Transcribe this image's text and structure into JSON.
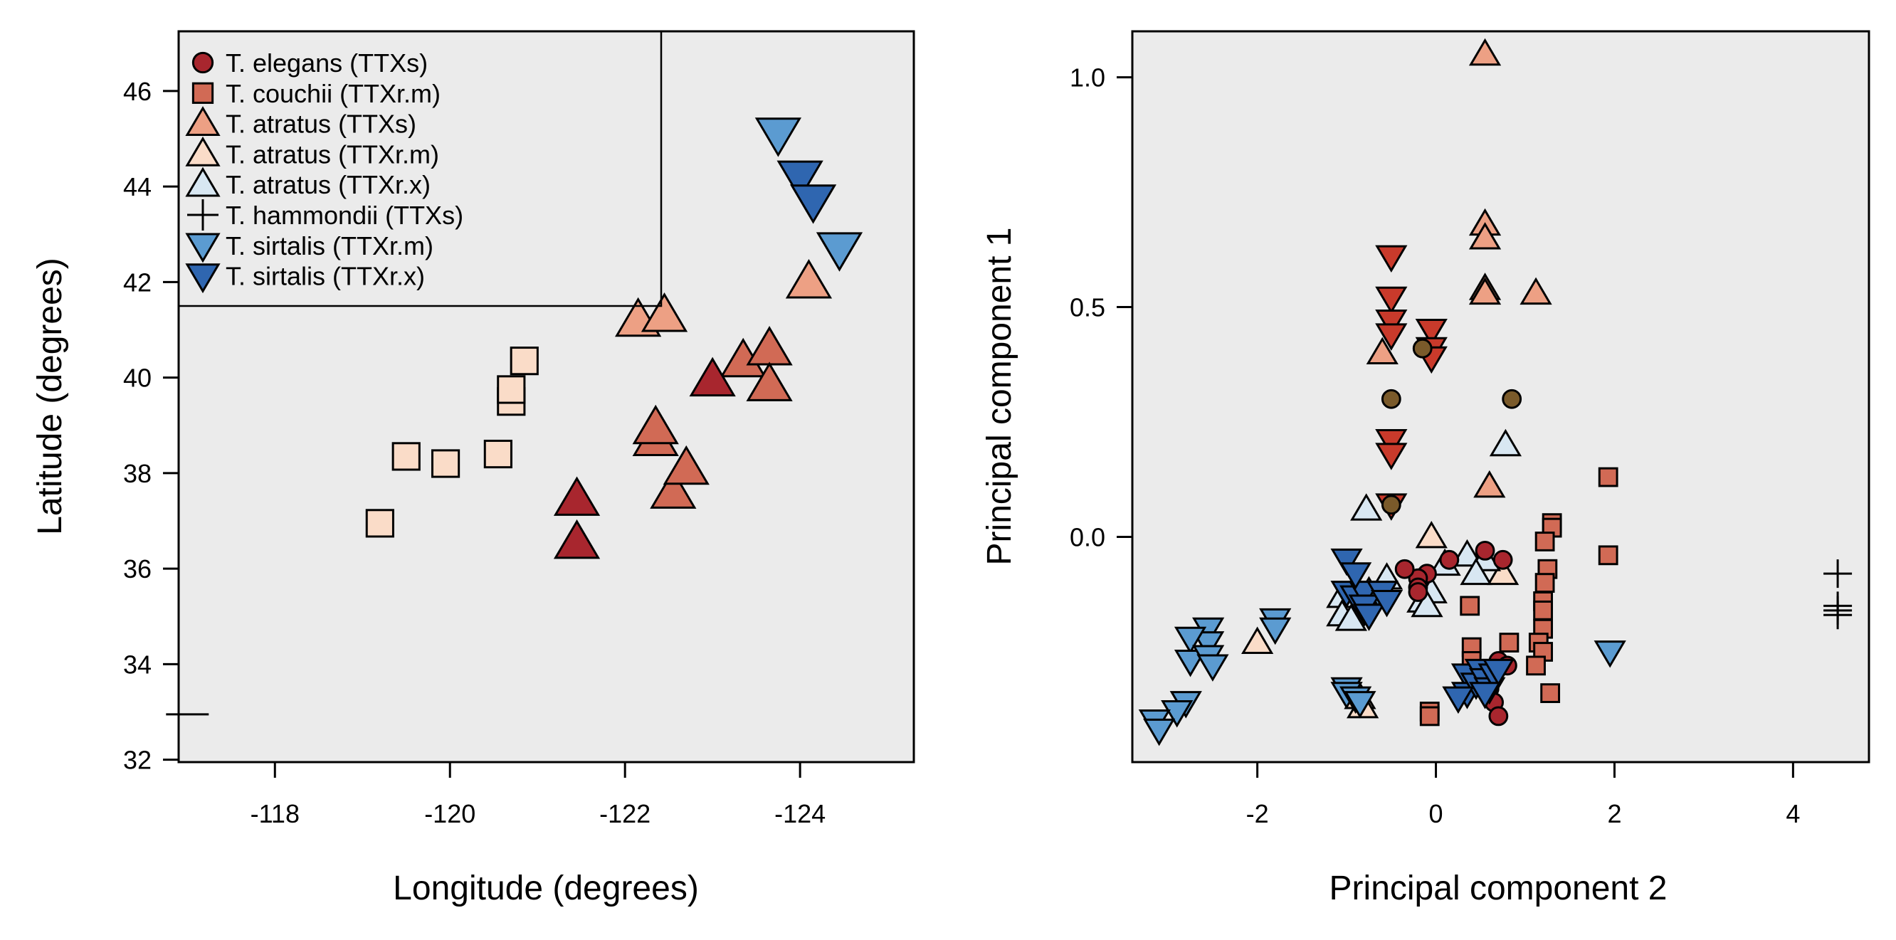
{
  "chart_data": [
    {
      "type": "scatter",
      "xlabel": "Longitude (degrees)",
      "ylabel": "Latitude (degrees)",
      "xlim": [
        -116.9,
        -125.3
      ],
      "ylim": [
        31.95,
        47.25
      ],
      "xticks": [
        -118,
        -120,
        -122,
        -124
      ],
      "xtick_labels": [
        "-118",
        "-120",
        "-122",
        "-124"
      ],
      "yticks": [
        32,
        34,
        36,
        38,
        40,
        42,
        44,
        46
      ],
      "ytick_labels": [
        "32",
        "34",
        "36",
        "38",
        "40",
        "42",
        "44",
        "46"
      ],
      "legend_position": "top-left",
      "legend": [
        {
          "name": "T. elegans (TTXs)",
          "marker": "circle",
          "color": "#A8262E"
        },
        {
          "name": "T. couchii (TTXr.m)",
          "marker": "square",
          "color": "#D16A55"
        },
        {
          "name": "T. atratus (TTXs)",
          "marker": "triangle-up",
          "color": "#EDA084"
        },
        {
          "name": "T. atratus (TTXr.m)",
          "marker": "triangle-up",
          "color": "#FADCC8"
        },
        {
          "name": "T. atratus (TTXr.x)",
          "marker": "triangle-up",
          "color": "#D8E7F2"
        },
        {
          "name": "T. hammondii (TTXs)",
          "marker": "plus",
          "color": "#000000"
        },
        {
          "name": "T. sirtalis (TTXr.m)",
          "marker": "triangle-down",
          "color": "#5B9BD1"
        },
        {
          "name": "T. sirtalis (TTXr.x)",
          "marker": "triangle-down",
          "color": "#2F66B0"
        }
      ],
      "series": [
        {
          "marker": "square",
          "color": "#FADCC8",
          "points": [
            [
              -119.2,
              36.95
            ],
            [
              -119.5,
              38.35
            ],
            [
              -119.95,
              38.2
            ],
            [
              -120.55,
              38.4
            ],
            [
              -120.7,
              39.5
            ],
            [
              -120.7,
              39.75
            ],
            [
              -120.85,
              40.35
            ]
          ]
        },
        {
          "marker": "triangle-up",
          "color": "#EDA084",
          "points": [
            [
              -122.15,
              41.2
            ],
            [
              -122.45,
              41.3
            ],
            [
              -124.1,
              42.0
            ]
          ]
        },
        {
          "marker": "triangle-up",
          "color": "#D16A55",
          "points": [
            [
              -122.35,
              38.7
            ],
            [
              -122.35,
              38.95
            ],
            [
              -122.55,
              37.6
            ],
            [
              -122.7,
              38.1
            ],
            [
              -123.35,
              40.35
            ],
            [
              -123.65,
              40.6
            ],
            [
              -123.65,
              39.85
            ]
          ]
        },
        {
          "marker": "triangle-up",
          "color": "#A8262E",
          "points": [
            [
              -121.45,
              37.45
            ],
            [
              -121.45,
              36.55
            ],
            [
              -123.0,
              39.95
            ]
          ]
        },
        {
          "marker": "triangle-down",
          "color": "#5B9BD1",
          "points": [
            [
              -123.75,
              45.1
            ],
            [
              -124.45,
              42.7
            ]
          ]
        },
        {
          "marker": "triangle-down",
          "color": "#2F66B0",
          "points": [
            [
              -124.0,
              44.2
            ],
            [
              -124.15,
              43.7
            ]
          ]
        },
        {
          "marker": "dash",
          "color": "#000000",
          "points": [
            [
              -117.0,
              32.95
            ]
          ]
        }
      ]
    },
    {
      "type": "scatter",
      "xlabel": "Principal component 2",
      "ylabel": "Principal component 1",
      "xlim": [
        -3.4,
        4.85
      ],
      "ylim": [
        -0.49,
        1.1
      ],
      "xticks": [
        -2,
        0,
        2,
        4
      ],
      "xtick_labels": [
        "-2",
        "0",
        "2",
        "4"
      ],
      "yticks": [
        0.0,
        0.5,
        1.0
      ],
      "ytick_labels": [
        "0.0",
        "0.5",
        "1.0"
      ],
      "series": [
        {
          "marker": "triangle-up",
          "color": "#EDA084",
          "points": [
            [
              0.55,
              1.05
            ],
            [
              0.55,
              0.68
            ],
            [
              0.55,
              0.65
            ],
            [
              0.55,
              0.54
            ],
            [
              0.55,
              0.53
            ],
            [
              1.12,
              0.53
            ],
            [
              -0.6,
              0.4
            ],
            [
              0.6,
              0.11
            ]
          ]
        },
        {
          "marker": "triangle-up",
          "color": "#FADCC8",
          "points": [
            [
              -0.05,
              0.0
            ],
            [
              0.75,
              -0.08
            ],
            [
              -2.0,
              -0.23
            ],
            [
              -0.85,
              -0.35
            ],
            [
              -0.82,
              -0.37
            ]
          ]
        },
        {
          "marker": "triangle-up",
          "color": "#D8E7F2",
          "points": [
            [
              0.78,
              0.2
            ],
            [
              -0.78,
              0.06
            ],
            [
              -1.05,
              -0.13
            ],
            [
              -1.05,
              -0.17
            ],
            [
              -0.95,
              -0.18
            ],
            [
              -0.75,
              -0.12
            ],
            [
              -0.55,
              -0.09
            ],
            [
              -0.05,
              -0.12
            ],
            [
              -0.15,
              -0.14
            ],
            [
              -0.1,
              -0.15
            ],
            [
              0.1,
              -0.06
            ],
            [
              0.35,
              -0.04
            ],
            [
              0.55,
              -0.05
            ],
            [
              0.45,
              -0.08
            ]
          ]
        },
        {
          "marker": "triangle-down",
          "color": "#C93A2B",
          "points": [
            [
              -0.5,
              0.61
            ],
            [
              -0.5,
              0.52
            ],
            [
              -0.5,
              0.47
            ],
            [
              -0.5,
              0.44
            ],
            [
              -0.05,
              0.45
            ],
            [
              -0.05,
              0.41
            ],
            [
              -0.05,
              0.39
            ],
            [
              -0.5,
              0.21
            ],
            [
              -0.5,
              0.18
            ],
            [
              -0.5,
              0.07
            ]
          ]
        },
        {
          "marker": "circle",
          "color": "#7A5A2A",
          "points": [
            [
              -0.15,
              0.41
            ],
            [
              -0.5,
              0.3
            ],
            [
              0.85,
              0.3
            ],
            [
              -0.5,
              0.07
            ]
          ]
        },
        {
          "marker": "circle",
          "color": "#A8262E",
          "points": [
            [
              -0.1,
              -0.08
            ],
            [
              -0.2,
              -0.09
            ],
            [
              -0.35,
              -0.07
            ],
            [
              -0.2,
              -0.11
            ],
            [
              -0.2,
              -0.12
            ],
            [
              0.15,
              -0.05
            ],
            [
              0.55,
              -0.03
            ],
            [
              0.75,
              -0.05
            ],
            [
              0.7,
              -0.27
            ],
            [
              0.8,
              -0.28
            ],
            [
              0.55,
              -0.3
            ],
            [
              0.6,
              -0.33
            ],
            [
              0.65,
              -0.36
            ],
            [
              0.7,
              -0.39
            ]
          ]
        },
        {
          "marker": "square",
          "color": "#D16A55",
          "points": [
            [
              1.93,
              0.13
            ],
            [
              1.93,
              -0.04
            ],
            [
              1.3,
              0.03
            ],
            [
              1.3,
              0.02
            ],
            [
              1.22,
              -0.01
            ],
            [
              1.25,
              -0.07
            ],
            [
              1.22,
              -0.1
            ],
            [
              1.2,
              -0.14
            ],
            [
              1.2,
              -0.16
            ],
            [
              1.2,
              -0.2
            ],
            [
              1.15,
              -0.23
            ],
            [
              1.2,
              -0.25
            ],
            [
              1.12,
              -0.28
            ],
            [
              1.28,
              -0.34
            ],
            [
              0.82,
              -0.23
            ],
            [
              0.4,
              -0.24
            ],
            [
              0.4,
              -0.27
            ],
            [
              0.4,
              -0.3
            ],
            [
              0.38,
              -0.15
            ],
            [
              -0.07,
              -0.38
            ],
            [
              -0.07,
              -0.39
            ]
          ]
        },
        {
          "marker": "triangle-down",
          "color": "#5B9BD1",
          "points": [
            [
              -2.55,
              -0.2
            ],
            [
              -2.55,
              -0.23
            ],
            [
              -2.75,
              -0.22
            ],
            [
              -2.75,
              -0.27
            ],
            [
              -2.55,
              -0.26
            ],
            [
              -2.5,
              -0.28
            ],
            [
              -1.8,
              -0.18
            ],
            [
              -1.8,
              -0.2
            ],
            [
              -2.8,
              -0.36
            ],
            [
              -2.9,
              -0.38
            ],
            [
              -3.15,
              -0.4
            ],
            [
              -3.1,
              -0.42
            ],
            [
              -1.0,
              -0.33
            ],
            [
              -1.0,
              -0.34
            ],
            [
              -0.9,
              -0.35
            ],
            [
              -0.85,
              -0.36
            ],
            [
              -0.8,
              -0.16
            ],
            [
              -0.7,
              -0.14
            ],
            [
              -0.65,
              -0.12
            ],
            [
              1.95,
              -0.25
            ]
          ]
        },
        {
          "marker": "triangle-down",
          "color": "#2F66B0",
          "points": [
            [
              -1.0,
              -0.05
            ],
            [
              -1.0,
              -0.12
            ],
            [
              -0.9,
              -0.13
            ],
            [
              -0.8,
              -0.12
            ],
            [
              -0.8,
              -0.15
            ],
            [
              -0.75,
              -0.17
            ],
            [
              -0.6,
              -0.12
            ],
            [
              -0.55,
              -0.14
            ],
            [
              -0.9,
              -0.08
            ],
            [
              0.35,
              -0.3
            ],
            [
              0.35,
              -0.34
            ],
            [
              0.45,
              -0.32
            ],
            [
              0.5,
              -0.29
            ],
            [
              0.55,
              -0.31
            ],
            [
              0.6,
              -0.33
            ],
            [
              0.65,
              -0.3
            ],
            [
              0.7,
              -0.29
            ],
            [
              0.55,
              -0.34
            ],
            [
              0.25,
              -0.35
            ]
          ]
        },
        {
          "marker": "plus",
          "color": "#000000",
          "points": [
            [
              4.5,
              -0.08
            ],
            [
              4.5,
              -0.15
            ],
            [
              4.5,
              -0.16
            ],
            [
              4.5,
              -0.17
            ]
          ]
        }
      ]
    }
  ]
}
